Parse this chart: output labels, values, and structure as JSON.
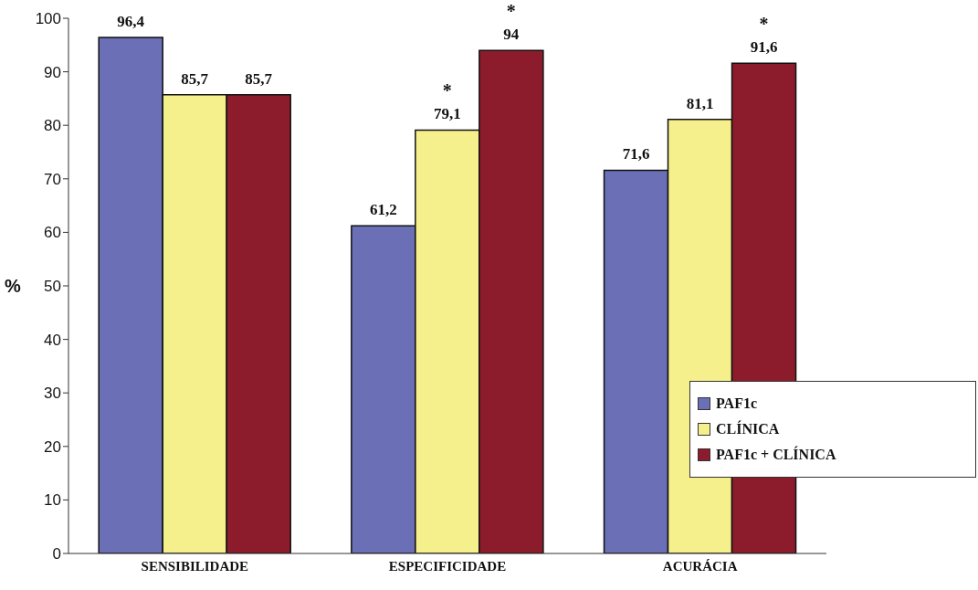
{
  "chart_data": {
    "type": "bar",
    "ylabel": "%",
    "categories": [
      "SENSIBILIDADE",
      "ESPECIFICIDADE",
      "ACURÁCIA"
    ],
    "series": [
      {
        "name": "PAF1c",
        "color": "#6b6fb5",
        "values": [
          96.4,
          61.2,
          71.6
        ],
        "value_labels": [
          "96,4",
          "61,2",
          "71,6"
        ]
      },
      {
        "name": "CLÍNICA",
        "color": "#f6f08c",
        "values": [
          85.7,
          79.1,
          81.1
        ],
        "value_labels": [
          "85,7",
          "79,1",
          "81,1"
        ]
      },
      {
        "name": "PAF1c + CLÍNICA",
        "color": "#8c1c2c",
        "values": [
          85.7,
          94,
          91.6
        ],
        "value_labels": [
          "85,7",
          "94",
          "91,6"
        ]
      }
    ],
    "ylim": [
      0,
      100
    ],
    "yticks": [
      0,
      10,
      20,
      30,
      40,
      50,
      60,
      70,
      80,
      90,
      100
    ],
    "legend": "bottom right",
    "annotations": [
      "*",
      "*",
      "*"
    ]
  }
}
